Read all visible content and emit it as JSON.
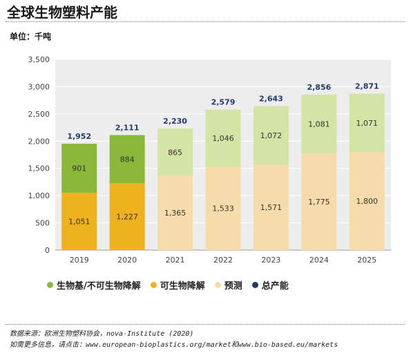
{
  "header": {
    "title": "全球生物塑料产能",
    "unit": "单位：千吨"
  },
  "legend": [
    {
      "label": "生物基/不可生物降解",
      "color": "#8bb83a"
    },
    {
      "label": "可生物降解",
      "color": "#efb21f"
    },
    {
      "label": "预测",
      "color": "#f5dcaa"
    },
    {
      "label": "总产能",
      "color": "#1f3c6e"
    }
  ],
  "source": {
    "line1": "数据来源：欧洲生物塑料协会，nova-Institute (2020)",
    "line2": "如需更多信息，请点击：www.european-bioplastics.org/market和www.bio-based.eu/markets"
  },
  "chart_data": {
    "type": "bar",
    "stacked": true,
    "categories": [
      "2019",
      "2020",
      "2021",
      "2022",
      "2023",
      "2024",
      "2025"
    ],
    "forecast_from_index": 2,
    "series": [
      {
        "name": "可生物降解",
        "values": [
          1051,
          1227,
          1365,
          1533,
          1571,
          1775,
          1800
        ]
      },
      {
        "name": "生物基/不可生物降解",
        "values": [
          901,
          884,
          865,
          1046,
          1072,
          1081,
          1071
        ]
      }
    ],
    "totals": [
      1952,
      2111,
      2230,
      2579,
      2643,
      2856,
      2871
    ],
    "total_labels": [
      "1,952",
      "2,111",
      "2,230",
      "2,579",
      "2,643",
      "2,856",
      "2,871"
    ],
    "value_labels": {
      "bottom": [
        "1,051",
        "1,227",
        "1,365",
        "1,533",
        "1,571",
        "1,775",
        "1,800"
      ],
      "top": [
        "901",
        "884",
        "865",
        "1,046",
        "1,072",
        "1,081",
        "1,071"
      ]
    },
    "y_ticks": [
      0,
      500,
      1000,
      1500,
      2000,
      2500,
      3000,
      3500
    ],
    "y_tick_labels": [
      "0",
      "500",
      "1,000",
      "1,500",
      "2,000",
      "2,500",
      "3,000",
      "3,500"
    ],
    "ylim": [
      0,
      3500
    ],
    "grid": true,
    "colors": {
      "actual_bottom": "#efb21f",
      "actual_top": "#8bb83a",
      "forecast_bottom": "#f5dcaa",
      "forecast_top": "#d3e4a4",
      "plot_bg": "#ededed",
      "grid": "#ffffff",
      "total_label": "#1f3c6e",
      "value_label": "#333333"
    }
  }
}
